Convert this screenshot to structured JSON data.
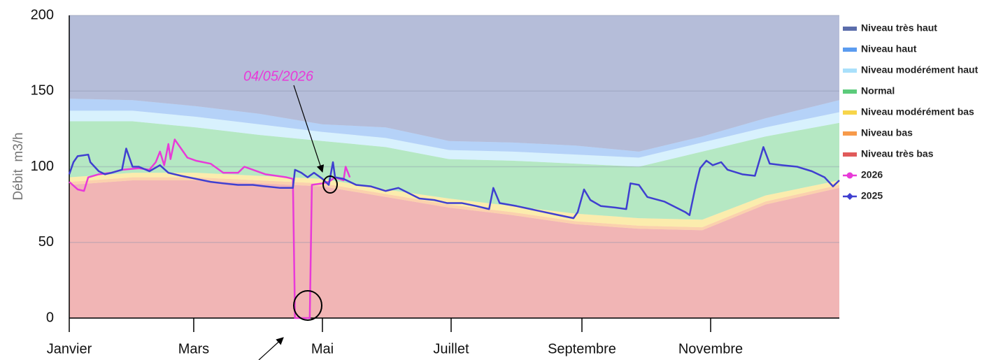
{
  "chart_data": {
    "type": "stacked-area-line",
    "ylabel": "Débit  m3/h",
    "annotation": "04/05/2026",
    "xlim": [
      0,
      365
    ],
    "xticks": [
      {
        "value": 0,
        "label": "Janvier"
      },
      {
        "value": 59,
        "label": "Mars"
      },
      {
        "value": 120,
        "label": "Mai"
      },
      {
        "value": 181,
        "label": "Juillet"
      },
      {
        "value": 243,
        "label": "Septembre"
      },
      {
        "value": 304,
        "label": "Novembre"
      }
    ],
    "ylim": [
      0,
      200
    ],
    "yticks": [
      0,
      50,
      100,
      150,
      200
    ],
    "grid": true,
    "legend": "right",
    "area_x": [
      0,
      30,
      60,
      90,
      120,
      150,
      180,
      210,
      240,
      270,
      300,
      330,
      365
    ],
    "area_series": [
      {
        "name": "Niveau très haut",
        "color": "#5b6dab",
        "values": [
          55,
          56,
          60,
          65,
          72,
          74,
          83,
          84,
          86,
          90,
          80,
          68,
          56
        ]
      },
      {
        "name": "Niveau haut",
        "color": "#5b9cf0",
        "values": [
          8,
          7,
          7,
          7,
          5,
          7,
          6,
          6,
          6,
          4,
          4,
          6,
          8
        ]
      },
      {
        "name": "Niveau modérément haut",
        "color": "#a9e0fb",
        "values": [
          7,
          7,
          7,
          7,
          6,
          6,
          6,
          6,
          6,
          6,
          6,
          6,
          7
        ]
      },
      {
        "name": "Normal",
        "color": "#5ccb7b",
        "values": [
          37,
          34,
          30,
          27,
          25,
          28,
          26,
          30,
          33,
          34,
          45,
          39,
          38
        ]
      },
      {
        "name": "Niveau modérément bas",
        "color": "#f7d54a",
        "values": [
          3,
          3,
          3,
          3,
          3,
          3,
          4,
          4,
          5,
          5,
          5,
          4,
          3
        ]
      },
      {
        "name": "Niveau bas",
        "color": "#f79a4a",
        "values": [
          2,
          2,
          2,
          2,
          2,
          2,
          2,
          2,
          2,
          2,
          2,
          2,
          2
        ]
      },
      {
        "name": "Niveau très bas",
        "color": "#e05a5a",
        "values": [
          88,
          91,
          91,
          89,
          87,
          80,
          73,
          68,
          62,
          59,
          58,
          75,
          86
        ]
      }
    ],
    "series": [
      {
        "name": "2026",
        "color": "#e83ad8",
        "marker": "circle",
        "x": [
          0,
          4,
          7,
          9,
          14,
          20,
          25,
          33,
          38,
          41,
          43,
          45,
          47,
          48,
          50,
          53,
          56,
          60,
          67,
          73,
          80,
          83,
          93,
          103,
          106,
          107,
          114,
          115,
          120,
          123,
          126,
          130,
          131,
          133
        ],
        "values": [
          90,
          85,
          84,
          93,
          95,
          96,
          98,
          99,
          98,
          103,
          110,
          101,
          115,
          105,
          118,
          112,
          106,
          104,
          102,
          96,
          96,
          100,
          95,
          93,
          92,
          0,
          0,
          88,
          89,
          90,
          93,
          91,
          100,
          93
        ]
      },
      {
        "name": "2025",
        "color": "#3f3fd0",
        "marker": "diamond",
        "x": [
          0,
          2,
          4,
          9,
          10,
          14,
          17,
          20,
          25,
          27,
          30,
          33,
          38,
          43,
          47,
          53,
          60,
          67,
          73,
          80,
          87,
          93,
          100,
          106,
          107,
          110,
          113,
          116,
          120,
          123,
          125,
          126,
          130,
          136,
          143,
          150,
          156,
          166,
          173,
          179,
          186,
          193,
          199,
          201,
          204,
          212,
          222,
          232,
          239,
          241,
          244,
          247,
          252,
          259,
          264,
          266,
          270,
          274,
          282,
          292,
          294,
          297,
          299,
          302,
          305,
          309,
          312,
          319,
          325,
          329,
          332,
          338,
          345,
          352,
          358,
          362,
          365
        ],
        "values": [
          95,
          103,
          107,
          108,
          103,
          97,
          95,
          96,
          98,
          112,
          100,
          100,
          97,
          101,
          96,
          94,
          92,
          90,
          89,
          88,
          88,
          87,
          86,
          86,
          98,
          96,
          93,
          96,
          92,
          88,
          103,
          93,
          92,
          88,
          87,
          84,
          86,
          79,
          78,
          76,
          76,
          74,
          72,
          86,
          76,
          74,
          71,
          68,
          66,
          70,
          85,
          78,
          74,
          73,
          72,
          89,
          88,
          80,
          77,
          70,
          68,
          88,
          99,
          104,
          101,
          103,
          98,
          95,
          94,
          113,
          102,
          101,
          100,
          97,
          93,
          87,
          91
        ]
      }
    ]
  }
}
